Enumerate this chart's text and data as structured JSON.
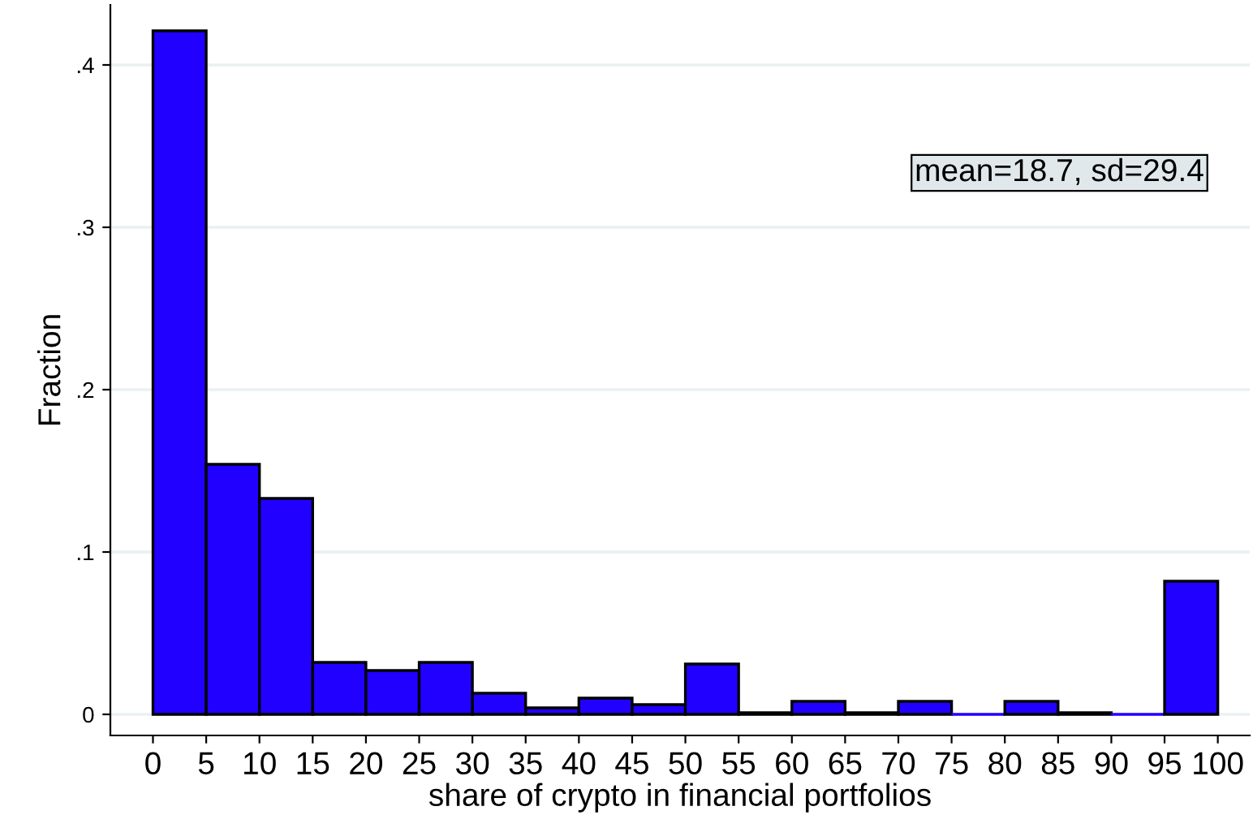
{
  "chart_data": {
    "type": "histogram",
    "xlabel": "share of crypto in financial portfolios",
    "ylabel": "Fraction",
    "bins": [
      0,
      5,
      10,
      15,
      20,
      25,
      30,
      35,
      40,
      45,
      50,
      55,
      60,
      65,
      70,
      75,
      80,
      85,
      90,
      95,
      100
    ],
    "values": [
      0.421,
      0.154,
      0.133,
      0.032,
      0.027,
      0.032,
      0.013,
      0.004,
      0.01,
      0.006,
      0.031,
      0.001,
      0.008,
      0.001,
      0.008,
      0,
      0.008,
      0.001,
      0,
      0.082
    ],
    "color": "#2200ff",
    "xlim": [
      -4,
      103
    ],
    "xticks": [
      0,
      5,
      10,
      15,
      20,
      25,
      30,
      35,
      40,
      45,
      50,
      55,
      60,
      65,
      70,
      75,
      80,
      85,
      90,
      95,
      100
    ],
    "ylim": [
      -0.013,
      0.437
    ],
    "yticks": [
      {
        "value": 0,
        "label": "0"
      },
      {
        "value": 0.1,
        "label": ".1"
      },
      {
        "value": 0.2,
        "label": ".2"
      },
      {
        "value": 0.3,
        "label": ".3"
      },
      {
        "value": 0.4,
        "label": ".4"
      }
    ],
    "grid": "y",
    "annotations": [
      "mean=18.7, sd=29.4"
    ]
  }
}
